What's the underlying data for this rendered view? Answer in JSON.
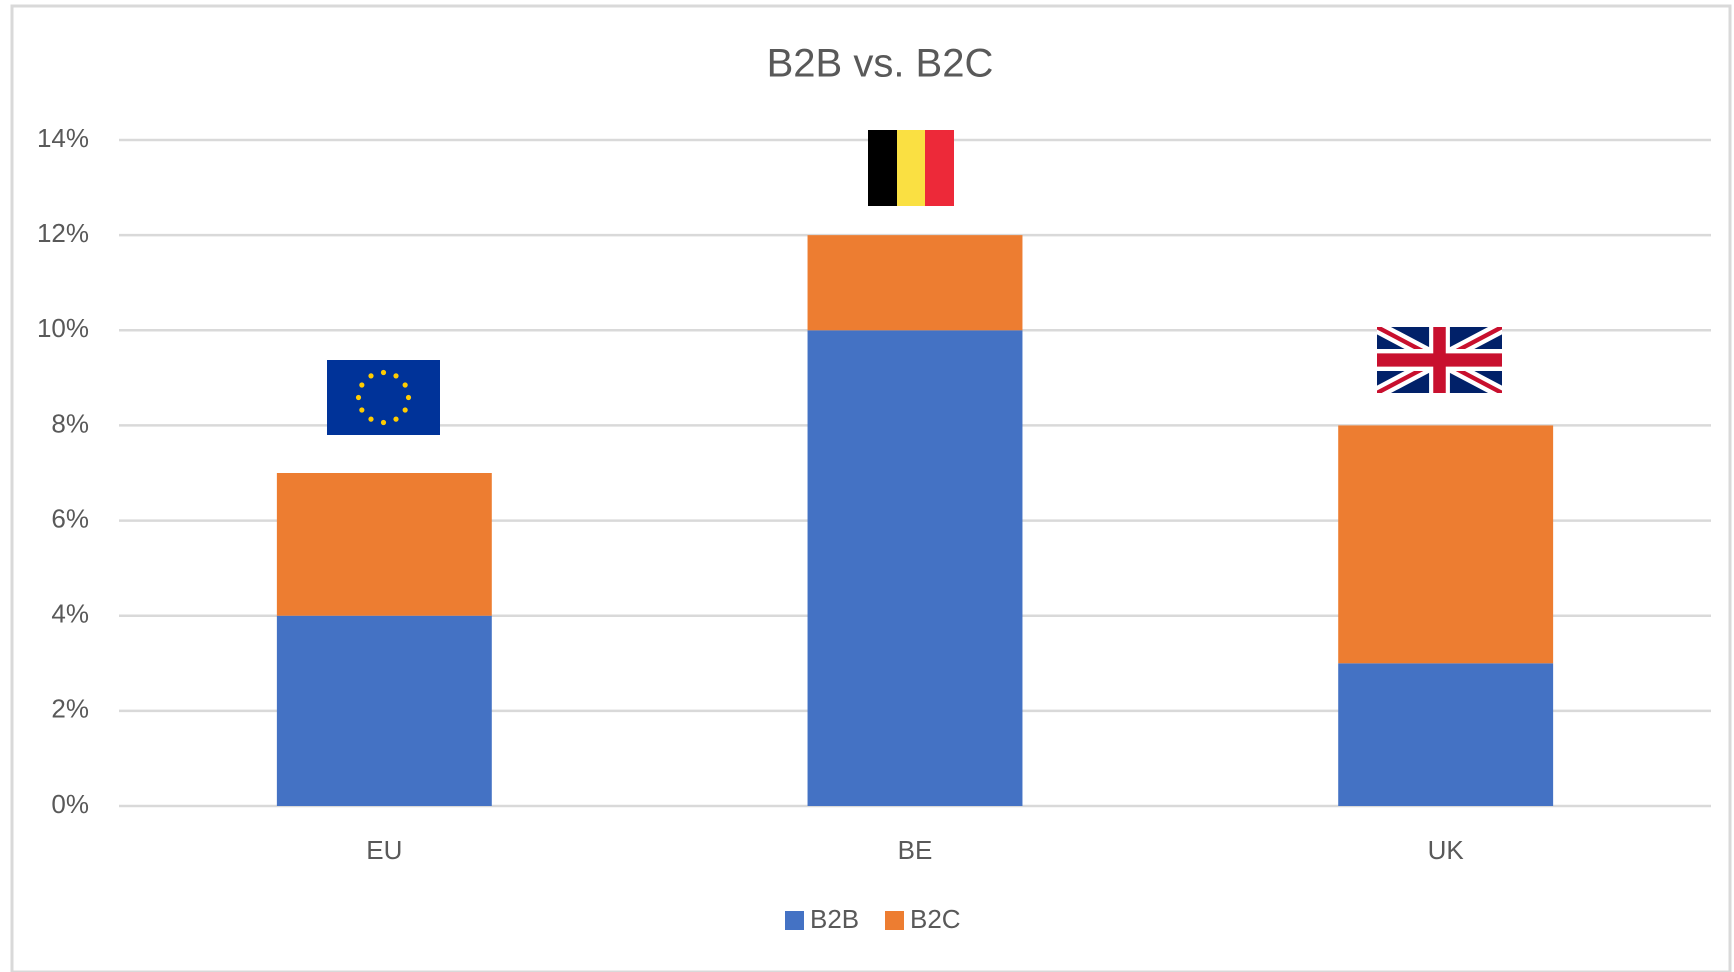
{
  "chart_data": {
    "type": "stacked_bar",
    "title": "B2B vs. B2C",
    "categories": [
      "EU",
      "BE",
      "UK"
    ],
    "series": [
      {
        "name": "B2B",
        "color": "#4472c4",
        "values": [
          4,
          10,
          3
        ]
      },
      {
        "name": "B2C",
        "color": "#ed7d31",
        "values": [
          3,
          2,
          5
        ]
      }
    ],
    "ylim": [
      0,
      14
    ],
    "yticks": [
      {
        "value": 0,
        "label": "0%"
      },
      {
        "value": 2,
        "label": "2%"
      },
      {
        "value": 4,
        "label": "4%"
      },
      {
        "value": 6,
        "label": "6%"
      },
      {
        "value": 8,
        "label": "8%"
      },
      {
        "value": 10,
        "label": "10%"
      },
      {
        "value": 12,
        "label": "12%"
      },
      {
        "value": 14,
        "label": "14%"
      }
    ],
    "grid": true,
    "legend": "bottom"
  }
}
